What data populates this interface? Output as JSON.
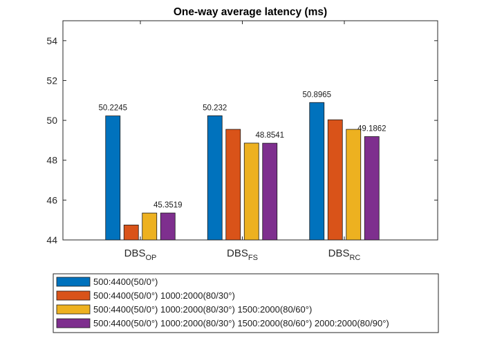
{
  "chart_data": {
    "type": "bar",
    "title": "One-way average latency (ms)",
    "xlabel": "",
    "ylabel": "",
    "categories": [
      {
        "base": "DBS",
        "sub": "OP"
      },
      {
        "base": "DBS",
        "sub": "FS"
      },
      {
        "base": "DBS",
        "sub": "RC"
      }
    ],
    "ylim": [
      44,
      55
    ],
    "yticks": [
      44,
      46,
      48,
      50,
      52,
      54
    ],
    "grid": false,
    "legend_position": "bottom",
    "series": [
      {
        "name": "500:4400(50/0°)",
        "color": "#0072BD",
        "values": [
          50.2245,
          50.232,
          50.8965
        ],
        "labels": [
          "50.2245",
          "50.232",
          "50.8965"
        ]
      },
      {
        "name": "500:4400(50/0°) 1000:2000(80/30°)",
        "color": "#D95319",
        "values": [
          44.75,
          49.55,
          50.03
        ],
        "labels": [
          "",
          "",
          ""
        ]
      },
      {
        "name": "500:4400(50/0°) 1000:2000(80/30°) 1500:2000(80/60°)",
        "color": "#EDB120",
        "values": [
          45.35,
          48.86,
          49.55
        ],
        "labels": [
          "",
          "",
          ""
        ]
      },
      {
        "name": "500:4400(50/0°) 1000:2000(80/30°) 1500:2000(80/60°) 2000:2000(80/90°)",
        "color": "#7E2F8E",
        "values": [
          45.3519,
          48.8541,
          49.1862
        ],
        "labels": [
          "45.3519",
          "48.8541",
          "49.1862"
        ]
      }
    ]
  }
}
